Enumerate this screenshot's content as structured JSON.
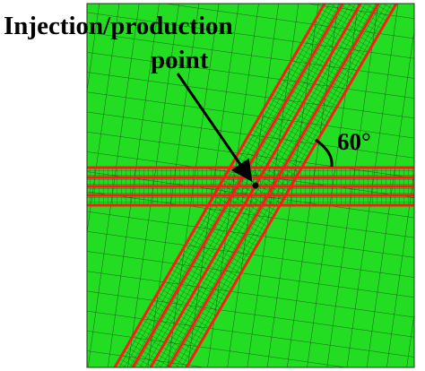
{
  "labels": {
    "title": "Injection/production",
    "title_line2": "point",
    "angle": "60°"
  }
}
